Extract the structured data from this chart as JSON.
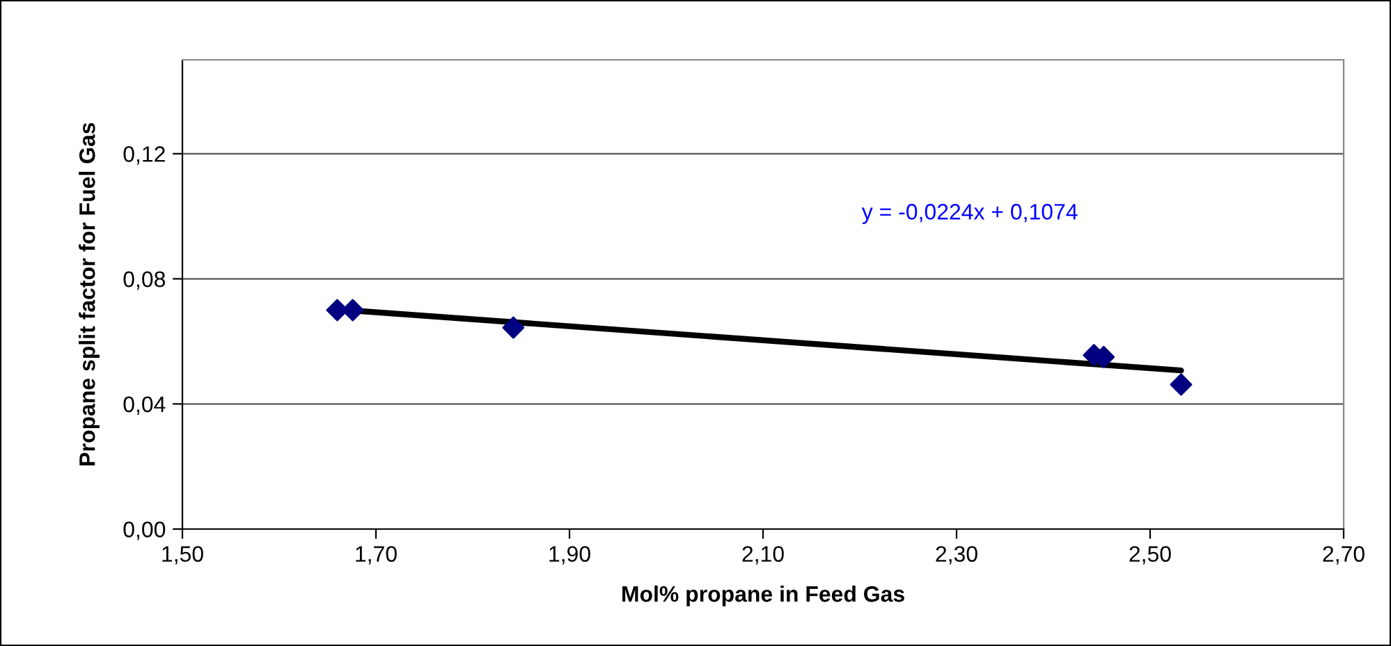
{
  "chart_data": {
    "type": "scatter",
    "xlabel": "Mol% propane in Feed Gas",
    "ylabel": "Propane split factor for Fuel Gas",
    "series": [
      {
        "color": "#000080",
        "marker": "diamond",
        "x": [
          1.66,
          1.676,
          1.842,
          2.442,
          2.452,
          2.532
        ],
        "values": [
          0.07,
          0.07,
          0.0644,
          0.0556,
          0.055,
          0.0462
        ]
      },
      {
        "type": "line",
        "color": "#000000",
        "marker": "none",
        "line_style": "solid",
        "x": [
          1.66,
          2.532
        ],
        "values": [
          0.0702,
          0.0507
        ]
      }
    ],
    "annotations": [
      "y = -0,0224x + 0,1074"
    ],
    "xlim": [
      1.5,
      2.7
    ],
    "xticks": [
      {
        "value": 1.5,
        "label": "1,50"
      },
      {
        "value": 1.7,
        "label": "1,70"
      },
      {
        "value": 1.9,
        "label": "1,90"
      },
      {
        "value": 2.1,
        "label": "2,10"
      },
      {
        "value": 2.3,
        "label": "2,30"
      },
      {
        "value": 2.5,
        "label": "2,50"
      },
      {
        "value": 2.7,
        "label": "2,70"
      }
    ],
    "ylim": [
      0,
      0.15
    ],
    "yticks": [
      {
        "value": 0,
        "label": "0,00"
      },
      {
        "value": 0.04,
        "label": "0,04"
      },
      {
        "value": 0.08,
        "label": "0,08"
      },
      {
        "value": 0.12,
        "label": "0,12"
      }
    ],
    "grid": "y",
    "legend": false
  }
}
